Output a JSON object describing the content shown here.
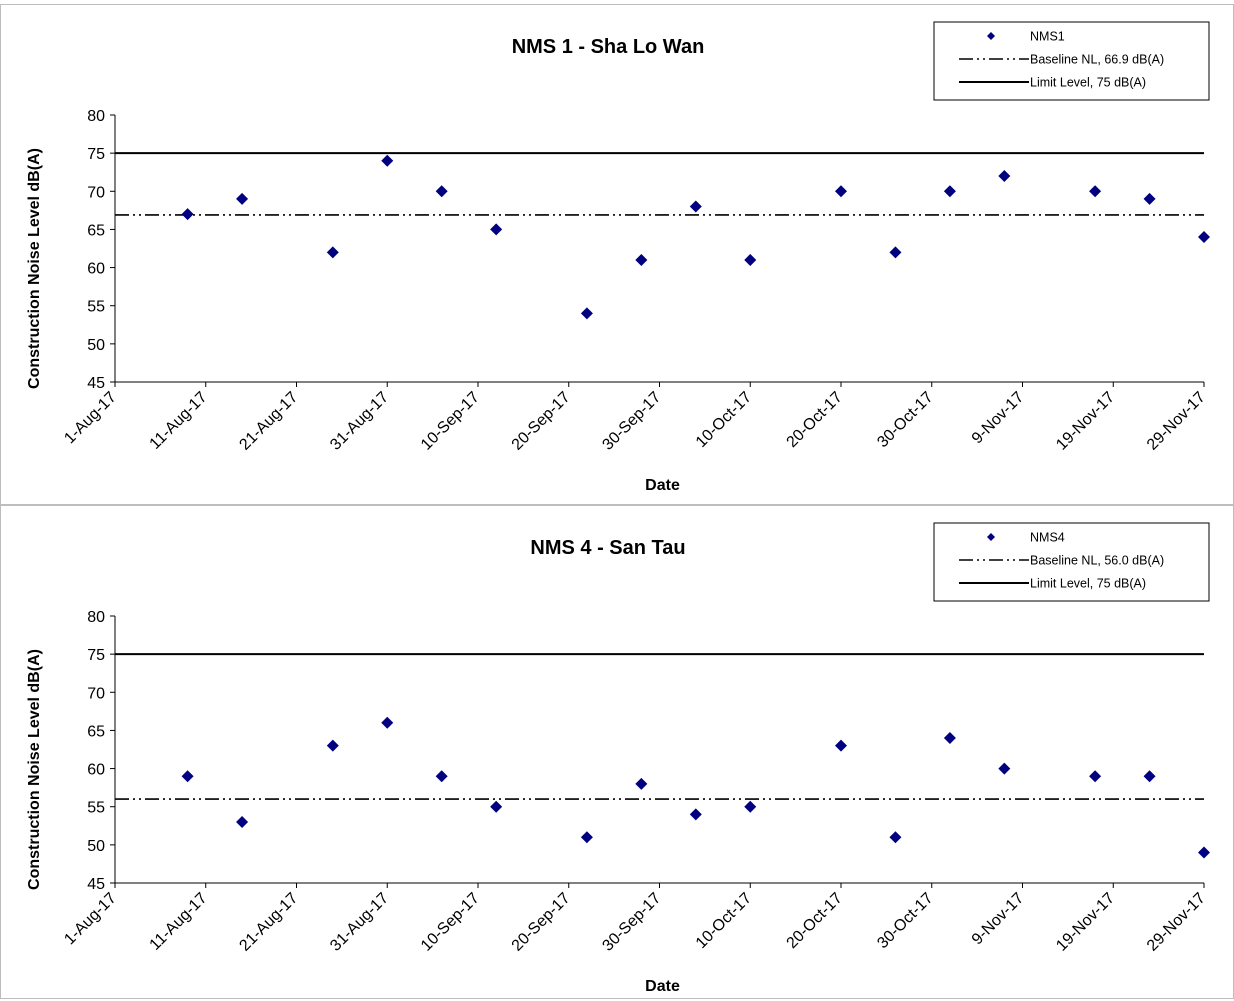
{
  "chart_data": [
    {
      "type": "scatter",
      "title": "NMS 1 - Sha Lo Wan",
      "xlabel": "Date",
      "ylabel": "Construction Noise Level  dB(A)",
      "ylim": [
        45,
        80
      ],
      "yticks": [
        45,
        50,
        55,
        60,
        65,
        70,
        75,
        80
      ],
      "xlim": [
        "2017-08-01",
        "2017-11-29"
      ],
      "xtick_labels": [
        "1-Aug-17",
        "11-Aug-17",
        "21-Aug-17",
        "31-Aug-17",
        "10-Sep-17",
        "20-Sep-17",
        "30-Sep-17",
        "10-Oct-17",
        "20-Oct-17",
        "30-Oct-17",
        "9-Nov-17",
        "19-Nov-17",
        "29-Nov-17"
      ],
      "series": [
        {
          "name": "NMS1",
          "marker": "diamond",
          "color": "#000080",
          "points": [
            {
              "x": "2017-08-09",
              "y": 67
            },
            {
              "x": "2017-08-15",
              "y": 69
            },
            {
              "x": "2017-08-25",
              "y": 62
            },
            {
              "x": "2017-08-31",
              "y": 74
            },
            {
              "x": "2017-09-06",
              "y": 70
            },
            {
              "x": "2017-09-12",
              "y": 65
            },
            {
              "x": "2017-09-22",
              "y": 54
            },
            {
              "x": "2017-09-28",
              "y": 61
            },
            {
              "x": "2017-10-04",
              "y": 68
            },
            {
              "x": "2017-10-10",
              "y": 61
            },
            {
              "x": "2017-10-20",
              "y": 70
            },
            {
              "x": "2017-10-26",
              "y": 62
            },
            {
              "x": "2017-11-01",
              "y": 70
            },
            {
              "x": "2017-11-07",
              "y": 72
            },
            {
              "x": "2017-11-17",
              "y": 70
            },
            {
              "x": "2017-11-23",
              "y": 69
            },
            {
              "x": "2017-11-29",
              "y": 64
            }
          ]
        }
      ],
      "reference_lines": [
        {
          "name": "Baseline NL, 66.9 dB(A)",
          "y": 66.9,
          "style": "dash-dot-dot"
        },
        {
          "name": "Limit Level, 75 dB(A)",
          "y": 75,
          "style": "solid"
        }
      ],
      "legend": "top-right",
      "grid": false
    },
    {
      "type": "scatter",
      "title": "NMS 4 - San Tau",
      "xlabel": "Date",
      "ylabel": "Construction Noise Level  dB(A)",
      "ylim": [
        45,
        80
      ],
      "yticks": [
        45,
        50,
        55,
        60,
        65,
        70,
        75,
        80
      ],
      "xlim": [
        "2017-08-01",
        "2017-11-29"
      ],
      "xtick_labels": [
        "1-Aug-17",
        "11-Aug-17",
        "21-Aug-17",
        "31-Aug-17",
        "10-Sep-17",
        "20-Sep-17",
        "30-Sep-17",
        "10-Oct-17",
        "20-Oct-17",
        "30-Oct-17",
        "9-Nov-17",
        "19-Nov-17",
        "29-Nov-17"
      ],
      "series": [
        {
          "name": "NMS4",
          "marker": "diamond",
          "color": "#000080",
          "points": [
            {
              "x": "2017-08-09",
              "y": 59
            },
            {
              "x": "2017-08-15",
              "y": 53
            },
            {
              "x": "2017-08-25",
              "y": 63
            },
            {
              "x": "2017-08-31",
              "y": 66
            },
            {
              "x": "2017-09-06",
              "y": 59
            },
            {
              "x": "2017-09-12",
              "y": 55
            },
            {
              "x": "2017-09-22",
              "y": 51
            },
            {
              "x": "2017-09-28",
              "y": 58
            },
            {
              "x": "2017-10-04",
              "y": 54
            },
            {
              "x": "2017-10-10",
              "y": 55
            },
            {
              "x": "2017-10-20",
              "y": 63
            },
            {
              "x": "2017-10-26",
              "y": 51
            },
            {
              "x": "2017-11-01",
              "y": 64
            },
            {
              "x": "2017-11-07",
              "y": 60
            },
            {
              "x": "2017-11-17",
              "y": 59
            },
            {
              "x": "2017-11-23",
              "y": 59
            },
            {
              "x": "2017-11-29",
              "y": 49
            }
          ]
        }
      ],
      "reference_lines": [
        {
          "name": "Baseline NL, 56.0 dB(A)",
          "y": 56.0,
          "style": "dash-dot-dot"
        },
        {
          "name": "Limit Level, 75 dB(A)",
          "y": 75,
          "style": "solid"
        }
      ],
      "legend": "top-right",
      "grid": false
    }
  ]
}
